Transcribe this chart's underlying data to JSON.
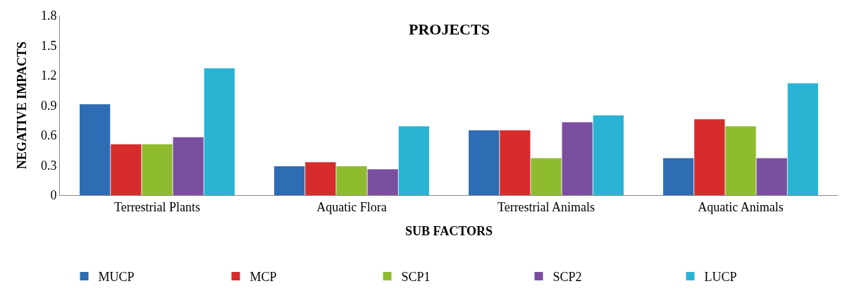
{
  "chart_data": {
    "type": "bar",
    "title": "PROJECTS",
    "xlabel": "SUB FACTORS",
    "ylabel": "NEGATIVE IMPACTS",
    "categories": [
      "Terrestrial Plants",
      "Aquatic Flora",
      "Terrestrial Animals",
      "Aquatic Animals"
    ],
    "series": [
      {
        "name": "MUCP",
        "color": "#2e6db4",
        "values": [
          0.91,
          0.29,
          0.65,
          0.37
        ]
      },
      {
        "name": "MCP",
        "color": "#d62c2c",
        "values": [
          0.51,
          0.33,
          0.65,
          0.76
        ]
      },
      {
        "name": "SCP1",
        "color": "#8fbc2e",
        "values": [
          0.51,
          0.29,
          0.37,
          0.69
        ]
      },
      {
        "name": "SCP2",
        "color": "#7b4fa0",
        "values": [
          0.58,
          0.26,
          0.73,
          0.37
        ]
      },
      {
        "name": "LUCP",
        "color": "#2ab4d4",
        "values": [
          1.27,
          0.69,
          0.8,
          1.12
        ]
      }
    ],
    "ylim": [
      0,
      1.8
    ],
    "yticks": [
      0,
      0.3,
      0.6,
      0.9,
      1.2,
      1.5,
      1.8
    ],
    "legend": "bottom"
  }
}
